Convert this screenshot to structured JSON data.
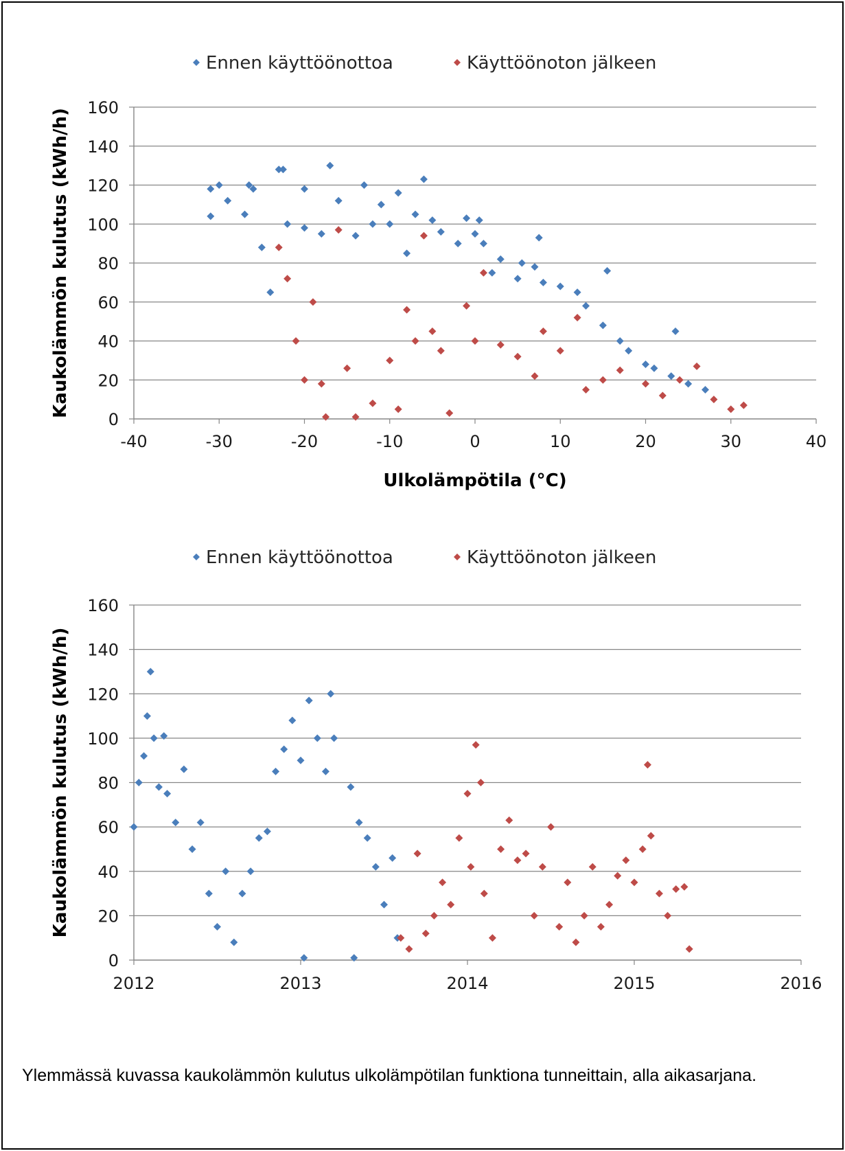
{
  "caption": "Ylemmässä kuvassa kaukolämmön kulutus ulkolämpötilan funktiona tunneittain, alla aikasarjana.",
  "colors": {
    "before": "#4a7ebb",
    "after": "#be4b48",
    "grid": "#868686"
  },
  "chart_data": [
    {
      "type": "scatter",
      "title": "",
      "xlabel": "Ulkolämpötila (°C)",
      "ylabel": "Kaukolämmön kulutus (kWh/h)",
      "xlim": [
        -40,
        40
      ],
      "ylim": [
        0,
        160
      ],
      "x_ticks": [
        "-40",
        "-30",
        "-20",
        "-10",
        "0",
        "10",
        "20",
        "30",
        "40"
      ],
      "y_ticks": [
        "0",
        "20",
        "40",
        "60",
        "80",
        "100",
        "120",
        "140",
        "160"
      ],
      "grid": "horizontal",
      "legend_position": "top",
      "series": [
        {
          "name": "Ennen käyttöönottoa",
          "color": "#4a7ebb",
          "points": [
            [
              -31,
              104
            ],
            [
              -31,
              118
            ],
            [
              -30,
              120
            ],
            [
              -29,
              112
            ],
            [
              -27,
              105
            ],
            [
              -26.5,
              120
            ],
            [
              -26,
              118
            ],
            [
              -25,
              88
            ],
            [
              -24,
              65
            ],
            [
              -23,
              128
            ],
            [
              -22.5,
              128
            ],
            [
              -22,
              100
            ],
            [
              -20,
              98
            ],
            [
              -20,
              118
            ],
            [
              -18,
              95
            ],
            [
              -17,
              130
            ],
            [
              -16,
              112
            ],
            [
              -14,
              94
            ],
            [
              -13,
              120
            ],
            [
              -12,
              100
            ],
            [
              -11,
              110
            ],
            [
              -10,
              100
            ],
            [
              -9,
              116
            ],
            [
              -8,
              85
            ],
            [
              -7,
              105
            ],
            [
              -6,
              123
            ],
            [
              -5,
              102
            ],
            [
              -4,
              96
            ],
            [
              -2,
              90
            ],
            [
              -1,
              103
            ],
            [
              0,
              95
            ],
            [
              0.5,
              102
            ],
            [
              1,
              90
            ],
            [
              2,
              75
            ],
            [
              3,
              82
            ],
            [
              5,
              72
            ],
            [
              5.5,
              80
            ],
            [
              7,
              78
            ],
            [
              7.5,
              93
            ],
            [
              8,
              70
            ],
            [
              10,
              68
            ],
            [
              12,
              65
            ],
            [
              13,
              58
            ],
            [
              15,
              48
            ],
            [
              15.5,
              76
            ],
            [
              17,
              40
            ],
            [
              18,
              35
            ],
            [
              20,
              28
            ],
            [
              21,
              26
            ],
            [
              23,
              22
            ],
            [
              23.5,
              45
            ],
            [
              25,
              18
            ],
            [
              27,
              15
            ]
          ]
        },
        {
          "name": "Käyttöönoton jälkeen",
          "color": "#be4b48",
          "points": [
            [
              -23,
              88
            ],
            [
              -22,
              72
            ],
            [
              -21,
              40
            ],
            [
              -20,
              20
            ],
            [
              -19,
              60
            ],
            [
              -18,
              18
            ],
            [
              -17.5,
              1
            ],
            [
              -16,
              97
            ],
            [
              -15,
              26
            ],
            [
              -14,
              1
            ],
            [
              -12,
              8
            ],
            [
              -10,
              30
            ],
            [
              -9,
              5
            ],
            [
              -8,
              56
            ],
            [
              -7,
              40
            ],
            [
              -6,
              94
            ],
            [
              -5,
              45
            ],
            [
              -4,
              35
            ],
            [
              -3,
              3
            ],
            [
              -1,
              58
            ],
            [
              0,
              40
            ],
            [
              1,
              75
            ],
            [
              3,
              38
            ],
            [
              5,
              32
            ],
            [
              7,
              22
            ],
            [
              8,
              45
            ],
            [
              10,
              35
            ],
            [
              12,
              52
            ],
            [
              13,
              15
            ],
            [
              15,
              20
            ],
            [
              17,
              25
            ],
            [
              20,
              18
            ],
            [
              22,
              12
            ],
            [
              24,
              20
            ],
            [
              26,
              27
            ],
            [
              28,
              10
            ],
            [
              30,
              5
            ],
            [
              31.5,
              7
            ]
          ]
        }
      ]
    },
    {
      "type": "scatter",
      "title": "",
      "xlabel": "",
      "ylabel": "Kaukolämmön kulutus (kWh/h)",
      "xlim": [
        2012,
        2016
      ],
      "ylim": [
        0,
        160
      ],
      "x_ticks": [
        "2012",
        "2013",
        "2014",
        "2015",
        "2016"
      ],
      "y_ticks": [
        "0",
        "20",
        "40",
        "60",
        "80",
        "100",
        "120",
        "140",
        "160"
      ],
      "grid": "horizontal",
      "legend_position": "top",
      "series": [
        {
          "name": "Ennen käyttöönottoa",
          "color": "#4a7ebb",
          "points": [
            [
              2012.0,
              60
            ],
            [
              2012.03,
              80
            ],
            [
              2012.06,
              92
            ],
            [
              2012.08,
              110
            ],
            [
              2012.1,
              130
            ],
            [
              2012.12,
              100
            ],
            [
              2012.15,
              78
            ],
            [
              2012.18,
              101
            ],
            [
              2012.2,
              75
            ],
            [
              2012.25,
              62
            ],
            [
              2012.3,
              86
            ],
            [
              2012.35,
              50
            ],
            [
              2012.4,
              62
            ],
            [
              2012.45,
              30
            ],
            [
              2012.5,
              15
            ],
            [
              2012.55,
              40
            ],
            [
              2012.6,
              8
            ],
            [
              2012.65,
              30
            ],
            [
              2012.7,
              40
            ],
            [
              2012.75,
              55
            ],
            [
              2012.8,
              58
            ],
            [
              2012.85,
              85
            ],
            [
              2012.9,
              95
            ],
            [
              2012.95,
              108
            ],
            [
              2013.0,
              90
            ],
            [
              2013.02,
              1
            ],
            [
              2013.05,
              117
            ],
            [
              2013.1,
              100
            ],
            [
              2013.15,
              85
            ],
            [
              2013.18,
              120
            ],
            [
              2013.2,
              100
            ],
            [
              2013.3,
              78
            ],
            [
              2013.32,
              1
            ],
            [
              2013.35,
              62
            ],
            [
              2013.4,
              55
            ],
            [
              2013.45,
              42
            ],
            [
              2013.5,
              25
            ],
            [
              2013.55,
              46
            ],
            [
              2013.58,
              10
            ]
          ]
        },
        {
          "name": "Käyttöönoton jälkeen",
          "color": "#be4b48",
          "points": [
            [
              2013.6,
              10
            ],
            [
              2013.65,
              5
            ],
            [
              2013.7,
              48
            ],
            [
              2013.75,
              12
            ],
            [
              2013.8,
              20
            ],
            [
              2013.85,
              35
            ],
            [
              2013.9,
              25
            ],
            [
              2013.95,
              55
            ],
            [
              2014.0,
              75
            ],
            [
              2014.02,
              42
            ],
            [
              2014.05,
              97
            ],
            [
              2014.08,
              80
            ],
            [
              2014.1,
              30
            ],
            [
              2014.15,
              10
            ],
            [
              2014.2,
              50
            ],
            [
              2014.25,
              63
            ],
            [
              2014.3,
              45
            ],
            [
              2014.35,
              48
            ],
            [
              2014.4,
              20
            ],
            [
              2014.45,
              42
            ],
            [
              2014.5,
              60
            ],
            [
              2014.55,
              15
            ],
            [
              2014.6,
              35
            ],
            [
              2014.65,
              8
            ],
            [
              2014.7,
              20
            ],
            [
              2014.75,
              42
            ],
            [
              2014.8,
              15
            ],
            [
              2014.85,
              25
            ],
            [
              2014.9,
              38
            ],
            [
              2014.95,
              45
            ],
            [
              2015.0,
              35
            ],
            [
              2015.05,
              50
            ],
            [
              2015.08,
              88
            ],
            [
              2015.1,
              56
            ],
            [
              2015.15,
              30
            ],
            [
              2015.2,
              20
            ],
            [
              2015.25,
              32
            ],
            [
              2015.3,
              33
            ],
            [
              2015.33,
              5
            ]
          ]
        }
      ]
    }
  ]
}
